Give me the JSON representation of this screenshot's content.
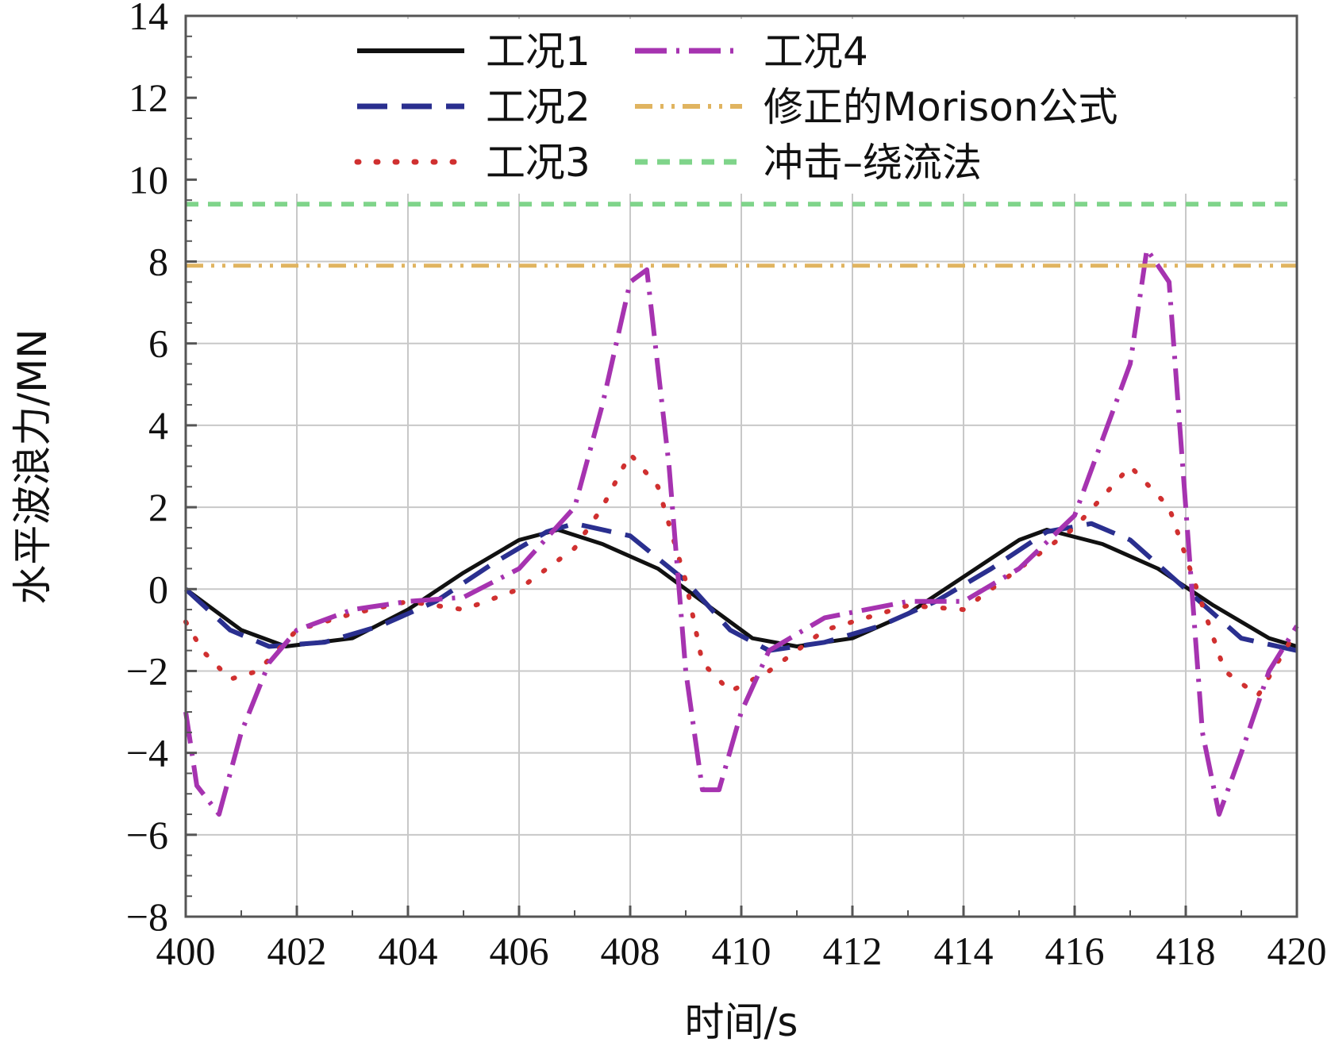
{
  "chart_data": {
    "type": "line",
    "xlabel": "时间/s",
    "ylabel": "水平波浪力/MN",
    "xlim": [
      400,
      420
    ],
    "ylim": [
      -8,
      14
    ],
    "x_ticks": [
      "400",
      "402",
      "404",
      "406",
      "408",
      "410",
      "412",
      "414",
      "416",
      "418",
      "420"
    ],
    "y_ticks": [
      "−8",
      "−6",
      "−4",
      "−2",
      "0",
      "2",
      "4",
      "6",
      "8",
      "10",
      "12",
      "14"
    ],
    "grid": true,
    "legend_position": "top",
    "series": [
      {
        "name": "工况1",
        "color": "#111111",
        "x": [
          400,
          401,
          401.8,
          403,
          404,
          405,
          406,
          406.7,
          407.5,
          408.5,
          409.5,
          410.2,
          411,
          412,
          413,
          414,
          415,
          415.5,
          416.5,
          417.5,
          418.5,
          419.5,
          420
        ],
        "y": [
          0,
          -1.0,
          -1.4,
          -1.2,
          -0.5,
          0.4,
          1.2,
          1.45,
          1.1,
          0.5,
          -0.5,
          -1.2,
          -1.4,
          -1.2,
          -0.6,
          0.3,
          1.2,
          1.45,
          1.1,
          0.5,
          -0.4,
          -1.2,
          -1.4
        ]
      },
      {
        "name": "工况2",
        "color": "#2a2f8f",
        "x": [
          400,
          400.8,
          401.5,
          402.5,
          403.5,
          404.5,
          405.5,
          406.5,
          407,
          408,
          409,
          409.8,
          410.5,
          411.5,
          412.5,
          413.5,
          414.5,
          415.5,
          416.3,
          417,
          418,
          419,
          420
        ],
        "y": [
          0,
          -1.0,
          -1.4,
          -1.3,
          -0.9,
          -0.3,
          0.6,
          1.4,
          1.6,
          1.3,
          0.2,
          -1.0,
          -1.5,
          -1.3,
          -0.9,
          -0.3,
          0.5,
          1.4,
          1.6,
          1.2,
          0.0,
          -1.2,
          -1.5
        ]
      },
      {
        "name": "工况3",
        "color": "#d03030",
        "x": [
          400,
          400.3,
          400.8,
          401.3,
          402,
          403,
          404,
          405,
          406,
          407,
          407.5,
          408,
          408.5,
          409,
          409.3,
          409.8,
          410.5,
          411.5,
          413,
          414,
          415,
          416,
          417,
          417.7,
          418.2,
          418.7,
          419.3,
          420
        ],
        "y": [
          -0.8,
          -1.5,
          -2.2,
          -2.0,
          -1.0,
          -0.6,
          -0.3,
          -0.5,
          0.0,
          1.0,
          2.0,
          3.3,
          2.5,
          0.2,
          -1.8,
          -2.5,
          -2.0,
          -1.0,
          -0.4,
          -0.5,
          0.5,
          1.5,
          3.0,
          2.0,
          0.0,
          -2.0,
          -2.6,
          -1.0
        ]
      },
      {
        "name": "工况4",
        "color": "#a633b0",
        "x": [
          400,
          400.2,
          400.6,
          401,
          401.5,
          402,
          403,
          404,
          405,
          406,
          407,
          407.5,
          408,
          408.3,
          408.7,
          409,
          409.3,
          409.6,
          410,
          410.5,
          411.5,
          413,
          414,
          415,
          416,
          417,
          417.3,
          417.7,
          418,
          418.3,
          418.6,
          419,
          419.5,
          420
        ],
        "y": [
          -3.0,
          -4.8,
          -5.5,
          -3.5,
          -1.8,
          -1.0,
          -0.5,
          -0.3,
          -0.2,
          0.5,
          2.0,
          4.5,
          7.5,
          7.8,
          3.0,
          -2.0,
          -4.9,
          -4.9,
          -3.0,
          -1.5,
          -0.7,
          -0.3,
          -0.3,
          0.5,
          1.8,
          5.5,
          8.3,
          7.5,
          2.0,
          -3.5,
          -5.5,
          -4.0,
          -2.0,
          -0.9
        ]
      },
      {
        "name": "修正的Morison公式",
        "color": "#e0b460",
        "x": [
          400,
          420
        ],
        "y": [
          7.9,
          7.9
        ]
      },
      {
        "name": "冲击–绕流法",
        "color": "#7fd48a",
        "x": [
          400,
          420
        ],
        "y": [
          9.4,
          9.4
        ]
      }
    ]
  }
}
